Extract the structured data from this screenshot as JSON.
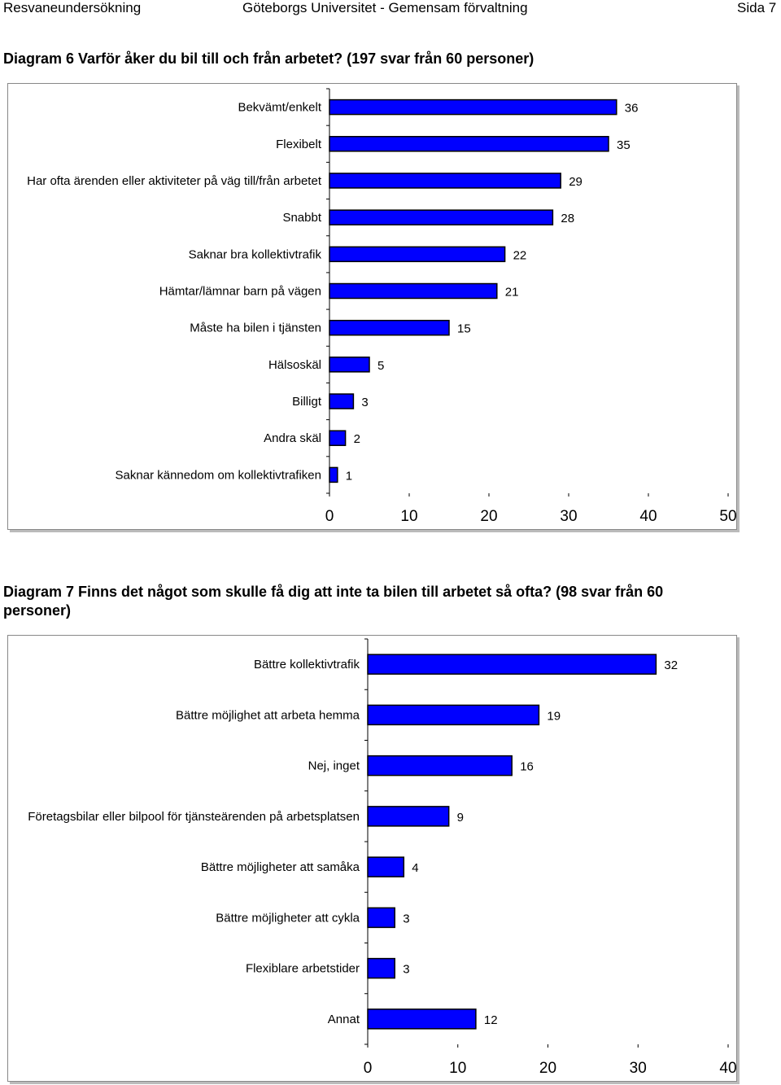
{
  "header": {
    "left": "Resvaneundersökning",
    "center": "Göteborgs Universitet - Gemensam förvaltning",
    "right": "Sida 7"
  },
  "chart_data": [
    {
      "type": "bar",
      "orientation": "horizontal",
      "title": "Diagram 6 Varför åker du bil till och från arbetet? (197 svar från 60 personer)",
      "categories": [
        "Bekvämt/enkelt",
        "Flexibelt",
        "Har ofta ärenden eller aktiviteter på väg till/från arbetet",
        "Snabbt",
        "Saknar bra kollektivtrafik",
        "Hämtar/lämnar barn på vägen",
        "Måste ha bilen i tjänsten",
        "Hälsoskäl",
        "Billigt",
        "Andra skäl",
        "Saknar kännedom om kollektivtrafiken"
      ],
      "values": [
        36,
        35,
        29,
        28,
        22,
        21,
        15,
        5,
        3,
        2,
        1
      ],
      "xlim": [
        0,
        50
      ],
      "xticks": [
        0,
        10,
        20,
        30,
        40,
        50
      ],
      "bar_color": "#0000ff",
      "grid": false,
      "data_labels": true
    },
    {
      "type": "bar",
      "orientation": "horizontal",
      "title": "Diagram 7 Finns det något som skulle få dig att inte ta bilen till arbetet så ofta? (98 svar från 60 personer)",
      "categories": [
        "Bättre kollektivtrafik",
        "Bättre möjlighet att arbeta hemma",
        "Nej, inget",
        "Företagsbilar eller bilpool för tjänsteärenden på arbetsplatsen",
        "Bättre möjligheter att samåka",
        "Bättre möjligheter att cykla",
        "Flexiblare arbetstider",
        "Annat"
      ],
      "values": [
        32,
        19,
        16,
        9,
        4,
        3,
        3,
        12
      ],
      "xlim": [
        0,
        40
      ],
      "xticks": [
        0,
        10,
        20,
        30,
        40
      ],
      "bar_color": "#0000ff",
      "grid": false,
      "data_labels": true
    }
  ]
}
